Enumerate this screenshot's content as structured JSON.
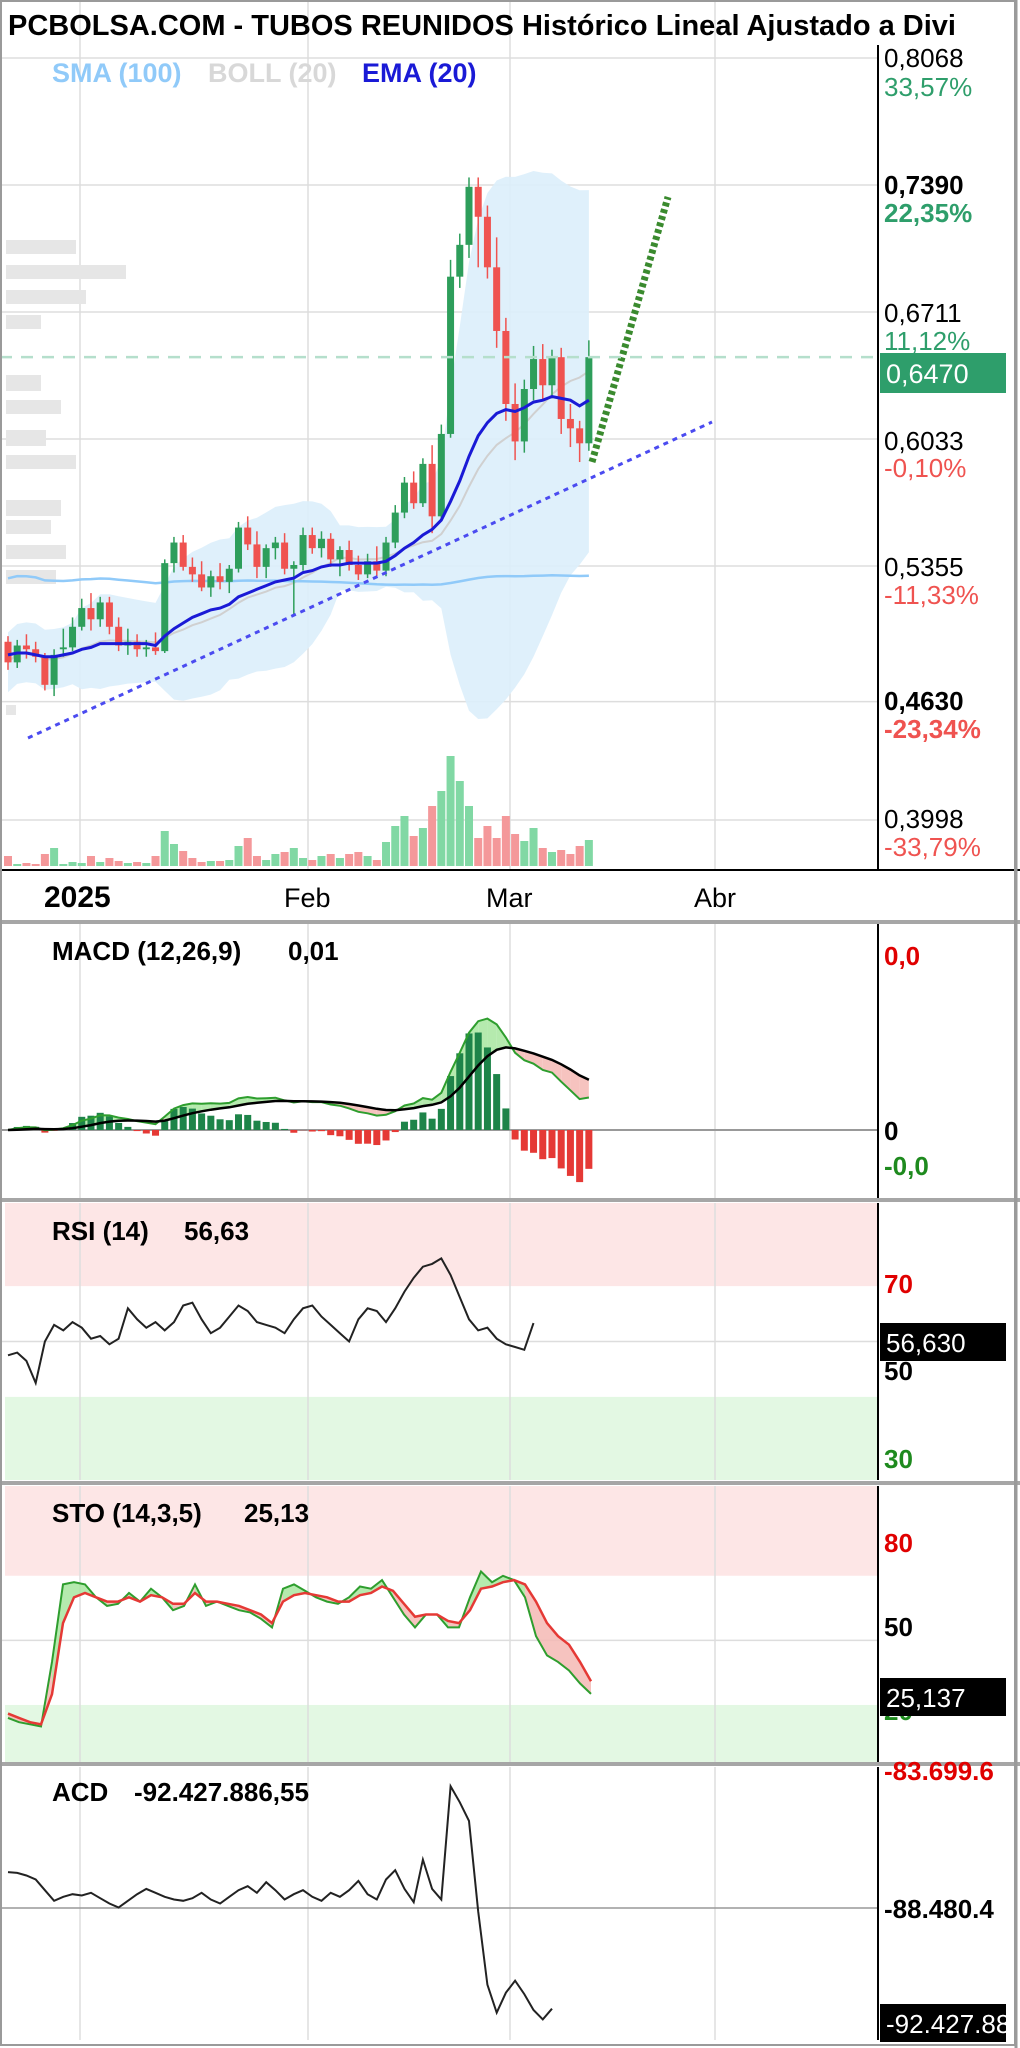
{
  "title": "PCBOLSA.COM - TUBOS REUNIDOS Histórico Lineal Ajustado a Divi",
  "colors": {
    "up": "#2e9e5b",
    "down": "#ef5350",
    "ema": "#1a1ad6",
    "sma": "#90caf9",
    "boll_fill": "#dbeefb",
    "boll_line": "#cfe6f7",
    "green_text": "#2e9e6b",
    "red_text": "#ef5350",
    "macd_pos": "#1e8449",
    "macd_neg": "#e53935",
    "grid": "#dddddd",
    "separator": "#a6a6a6"
  },
  "legend": {
    "sma": "SMA (100)",
    "boll": "BOLL (20)",
    "ema": "EMA (20)"
  },
  "chart_data": [
    {
      "type": "candlestick",
      "name": "price",
      "price_axis": {
        "levels": [
          {
            "price": "0,8068",
            "pct": "33,57%",
            "price_bold": false,
            "pct_color": "green"
          },
          {
            "price": "0,7390",
            "pct": "22,35%",
            "price_bold": true,
            "pct_color": "green"
          },
          {
            "price": "0,6711",
            "pct": "11,12%",
            "price_bold": false,
            "pct_color": "green"
          },
          {
            "price": "0,6033",
            "pct": "-0,10%",
            "price_bold": false,
            "pct_color": "red"
          },
          {
            "price": "0,5355",
            "pct": "-11,33%",
            "price_bold": false,
            "pct_color": "red"
          },
          {
            "price": "0,4630",
            "pct": "-23,34%",
            "price_bold": true,
            "pct_color": "red"
          },
          {
            "price": "0,3998",
            "pct": "-33,79%",
            "price_bold": false,
            "pct_color": "red"
          }
        ],
        "ylim": [
          0.3998,
          0.8068
        ],
        "current_price": "0,6470"
      },
      "x_axis": {
        "labels": [
          "2025",
          "Feb",
          "Mar",
          "Abr"
        ]
      },
      "candles": [
        {
          "o": 0.495,
          "h": 0.498,
          "l": 0.48,
          "c": 0.484
        },
        {
          "o": 0.484,
          "h": 0.496,
          "l": 0.481,
          "c": 0.493
        },
        {
          "o": 0.493,
          "h": 0.499,
          "l": 0.486,
          "c": 0.491
        },
        {
          "o": 0.491,
          "h": 0.495,
          "l": 0.484,
          "c": 0.487
        },
        {
          "o": 0.487,
          "h": 0.489,
          "l": 0.469,
          "c": 0.472
        },
        {
          "o": 0.472,
          "h": 0.491,
          "l": 0.466,
          "c": 0.488
        },
        {
          "o": 0.491,
          "h": 0.502,
          "l": 0.487,
          "c": 0.492
        },
        {
          "o": 0.492,
          "h": 0.508,
          "l": 0.49,
          "c": 0.503
        },
        {
          "o": 0.503,
          "h": 0.518,
          "l": 0.501,
          "c": 0.513
        },
        {
          "o": 0.513,
          "h": 0.521,
          "l": 0.501,
          "c": 0.507
        },
        {
          "o": 0.507,
          "h": 0.519,
          "l": 0.503,
          "c": 0.516
        },
        {
          "o": 0.516,
          "h": 0.519,
          "l": 0.499,
          "c": 0.503
        },
        {
          "o": 0.503,
          "h": 0.508,
          "l": 0.49,
          "c": 0.493
        },
        {
          "o": 0.493,
          "h": 0.502,
          "l": 0.488,
          "c": 0.495
        },
        {
          "o": 0.495,
          "h": 0.499,
          "l": 0.487,
          "c": 0.491
        },
        {
          "o": 0.491,
          "h": 0.496,
          "l": 0.487,
          "c": 0.492
        },
        {
          "o": 0.492,
          "h": 0.5,
          "l": 0.488,
          "c": 0.49
        },
        {
          "o": 0.49,
          "h": 0.539,
          "l": 0.489,
          "c": 0.537
        },
        {
          "o": 0.537,
          "h": 0.551,
          "l": 0.532,
          "c": 0.548
        },
        {
          "o": 0.548,
          "h": 0.552,
          "l": 0.533,
          "c": 0.535
        },
        {
          "o": 0.535,
          "h": 0.54,
          "l": 0.527,
          "c": 0.531
        },
        {
          "o": 0.531,
          "h": 0.538,
          "l": 0.522,
          "c": 0.524
        },
        {
          "o": 0.524,
          "h": 0.533,
          "l": 0.519,
          "c": 0.53
        },
        {
          "o": 0.53,
          "h": 0.537,
          "l": 0.523,
          "c": 0.527
        },
        {
          "o": 0.527,
          "h": 0.536,
          "l": 0.521,
          "c": 0.534
        },
        {
          "o": 0.534,
          "h": 0.559,
          "l": 0.532,
          "c": 0.556
        },
        {
          "o": 0.556,
          "h": 0.562,
          "l": 0.544,
          "c": 0.547
        },
        {
          "o": 0.547,
          "h": 0.554,
          "l": 0.529,
          "c": 0.535
        },
        {
          "o": 0.535,
          "h": 0.547,
          "l": 0.529,
          "c": 0.545
        },
        {
          "o": 0.545,
          "h": 0.551,
          "l": 0.539,
          "c": 0.548
        },
        {
          "o": 0.548,
          "h": 0.553,
          "l": 0.531,
          "c": 0.534
        },
        {
          "o": 0.534,
          "h": 0.538,
          "l": 0.509,
          "c": 0.536
        },
        {
          "o": 0.536,
          "h": 0.556,
          "l": 0.533,
          "c": 0.552
        },
        {
          "o": 0.552,
          "h": 0.556,
          "l": 0.542,
          "c": 0.545
        },
        {
          "o": 0.545,
          "h": 0.554,
          "l": 0.54,
          "c": 0.55
        },
        {
          "o": 0.55,
          "h": 0.553,
          "l": 0.535,
          "c": 0.539
        },
        {
          "o": 0.539,
          "h": 0.546,
          "l": 0.53,
          "c": 0.544
        },
        {
          "o": 0.544,
          "h": 0.549,
          "l": 0.533,
          "c": 0.536
        },
        {
          "o": 0.536,
          "h": 0.541,
          "l": 0.528,
          "c": 0.531
        },
        {
          "o": 0.531,
          "h": 0.542,
          "l": 0.529,
          "c": 0.538
        },
        {
          "o": 0.538,
          "h": 0.546,
          "l": 0.53,
          "c": 0.533
        },
        {
          "o": 0.533,
          "h": 0.551,
          "l": 0.53,
          "c": 0.548
        },
        {
          "o": 0.548,
          "h": 0.568,
          "l": 0.545,
          "c": 0.564
        },
        {
          "o": 0.564,
          "h": 0.583,
          "l": 0.561,
          "c": 0.58
        },
        {
          "o": 0.58,
          "h": 0.586,
          "l": 0.566,
          "c": 0.569
        },
        {
          "o": 0.569,
          "h": 0.593,
          "l": 0.567,
          "c": 0.59
        },
        {
          "o": 0.59,
          "h": 0.6,
          "l": 0.553,
          "c": 0.562
        },
        {
          "o": 0.562,
          "h": 0.611,
          "l": 0.56,
          "c": 0.606
        },
        {
          "o": 0.606,
          "h": 0.699,
          "l": 0.604,
          "c": 0.69
        },
        {
          "o": 0.69,
          "h": 0.713,
          "l": 0.684,
          "c": 0.707
        },
        {
          "o": 0.707,
          "h": 0.743,
          "l": 0.7,
          "c": 0.738
        },
        {
          "o": 0.738,
          "h": 0.743,
          "l": 0.695,
          "c": 0.722
        },
        {
          "o": 0.722,
          "h": 0.728,
          "l": 0.689,
          "c": 0.695
        },
        {
          "o": 0.695,
          "h": 0.711,
          "l": 0.652,
          "c": 0.661
        },
        {
          "o": 0.661,
          "h": 0.668,
          "l": 0.613,
          "c": 0.622
        },
        {
          "o": 0.622,
          "h": 0.633,
          "l": 0.592,
          "c": 0.602
        },
        {
          "o": 0.602,
          "h": 0.635,
          "l": 0.596,
          "c": 0.63
        },
        {
          "o": 0.63,
          "h": 0.653,
          "l": 0.624,
          "c": 0.646
        },
        {
          "o": 0.646,
          "h": 0.654,
          "l": 0.624,
          "c": 0.632
        },
        {
          "o": 0.632,
          "h": 0.651,
          "l": 0.625,
          "c": 0.647
        },
        {
          "o": 0.647,
          "h": 0.652,
          "l": 0.606,
          "c": 0.614
        },
        {
          "o": 0.614,
          "h": 0.622,
          "l": 0.599,
          "c": 0.609
        },
        {
          "o": 0.609,
          "h": 0.613,
          "l": 0.591,
          "c": 0.601
        },
        {
          "o": 0.601,
          "h": 0.656,
          "l": 0.597,
          "c": 0.647
        }
      ],
      "volume": [
        10,
        2,
        3,
        2,
        12,
        18,
        2,
        4,
        3,
        10,
        4,
        8,
        5,
        3,
        4,
        3,
        10,
        35,
        22,
        15,
        8,
        4,
        5,
        5,
        6,
        20,
        28,
        10,
        6,
        12,
        14,
        18,
        8,
        6,
        10,
        12,
        8,
        12,
        14,
        10,
        6,
        24,
        40,
        50,
        30,
        38,
        60,
        75,
        110,
        85,
        60,
        28,
        40,
        28,
        50,
        32,
        25,
        38,
        18,
        14,
        16,
        12,
        20,
        26
      ],
      "ema20": [
        0.488,
        0.489,
        0.489,
        0.488,
        0.487,
        0.487,
        0.488,
        0.489,
        0.491,
        0.492,
        0.494,
        0.494,
        0.494,
        0.494,
        0.494,
        0.494,
        0.493,
        0.498,
        0.502,
        0.505,
        0.508,
        0.51,
        0.512,
        0.513,
        0.515,
        0.519,
        0.521,
        0.523,
        0.525,
        0.527,
        0.528,
        0.529,
        0.532,
        0.533,
        0.535,
        0.536,
        0.536,
        0.537,
        0.537,
        0.537,
        0.537,
        0.538,
        0.541,
        0.545,
        0.548,
        0.552,
        0.555,
        0.56,
        0.57,
        0.581,
        0.594,
        0.605,
        0.612,
        0.617,
        0.619,
        0.618,
        0.62,
        0.623,
        0.624,
        0.626,
        0.625,
        0.624,
        0.621,
        0.624
      ]
    },
    {
      "type": "line",
      "name": "MACD",
      "label": "MACD (12,26,9)",
      "value": "0,01",
      "axis_labels": [
        "0,0",
        "0",
        "-0,0"
      ]
    },
    {
      "type": "line",
      "name": "RSI",
      "label": "RSI (14)",
      "value": "56,63",
      "current_tag": "56,630",
      "levels": [
        "70",
        "50",
        "30"
      ],
      "ylim": [
        0,
        100
      ],
      "values": [
        45,
        46,
        43,
        35,
        50,
        56,
        54,
        57,
        55,
        51,
        52,
        49,
        51,
        62,
        58,
        55,
        57,
        54,
        57,
        63,
        64,
        58,
        53,
        55,
        59,
        63,
        61,
        57,
        56,
        55,
        53,
        58,
        62,
        63,
        59,
        56,
        53,
        50,
        58,
        62,
        61,
        57,
        62,
        68,
        73,
        77,
        78,
        80,
        74,
        66,
        58,
        54,
        55,
        51,
        49,
        48,
        47,
        56.63
      ]
    },
    {
      "type": "line",
      "name": "STO",
      "label": "STO (14,3,5)",
      "value": "25,13",
      "current_tag": "25,137",
      "levels": [
        "80",
        "50",
        "20"
      ],
      "ylim": [
        0,
        100
      ],
      "k": [
        14,
        12,
        11,
        10,
        40,
        76,
        77,
        76,
        70,
        66,
        67,
        72,
        68,
        74,
        70,
        64,
        66,
        76,
        66,
        68,
        66,
        64,
        63,
        60,
        56,
        74,
        76,
        73,
        70,
        68,
        67,
        70,
        75,
        74,
        78,
        70,
        62,
        56,
        62,
        62,
        56,
        56,
        70,
        82,
        77,
        80,
        78,
        70,
        52,
        43,
        40,
        36,
        30,
        25.137
      ],
      "d": [
        16,
        14,
        12,
        11,
        25,
        58,
        70,
        72,
        70,
        68,
        68,
        70,
        68,
        71,
        70,
        67,
        67,
        72,
        68,
        68,
        67,
        66,
        64,
        62,
        58,
        68,
        71,
        72,
        71,
        70,
        68,
        68,
        71,
        72,
        75,
        73,
        67,
        61,
        62,
        62,
        59,
        58,
        64,
        74,
        75,
        77,
        78,
        76,
        68,
        58,
        52,
        48,
        40,
        31
      ]
    },
    {
      "type": "line",
      "name": "ACD",
      "label": "ACD",
      "value": "-92.427.886,55",
      "axis_labels": [
        "-83.699.6",
        "-88.480.4",
        "-92.427.88"
      ],
      "current_tag": "-92.427.88",
      "values": [
        -86.92,
        -86.95,
        -87.05,
        -87.2,
        -87.6,
        -88.0,
        -87.85,
        -87.75,
        -87.8,
        -87.7,
        -87.9,
        -88.1,
        -88.25,
        -88.0,
        -87.75,
        -87.55,
        -87.7,
        -87.85,
        -87.95,
        -88.0,
        -87.9,
        -87.7,
        -87.95,
        -88.1,
        -87.85,
        -87.6,
        -87.45,
        -87.7,
        -87.3,
        -87.6,
        -87.95,
        -87.75,
        -87.6,
        -87.85,
        -88.0,
        -87.7,
        -87.85,
        -87.6,
        -87.25,
        -87.75,
        -87.95,
        -87.2,
        -86.85,
        -87.55,
        -88.05,
        -86.45,
        -87.55,
        -87.95,
        -83.7,
        -84.3,
        -85.0,
        -88.4,
        -91.15,
        -92.2,
        -91.45,
        -91.0,
        -91.5,
        -92.1,
        -92.45,
        -92.05
      ]
    }
  ]
}
